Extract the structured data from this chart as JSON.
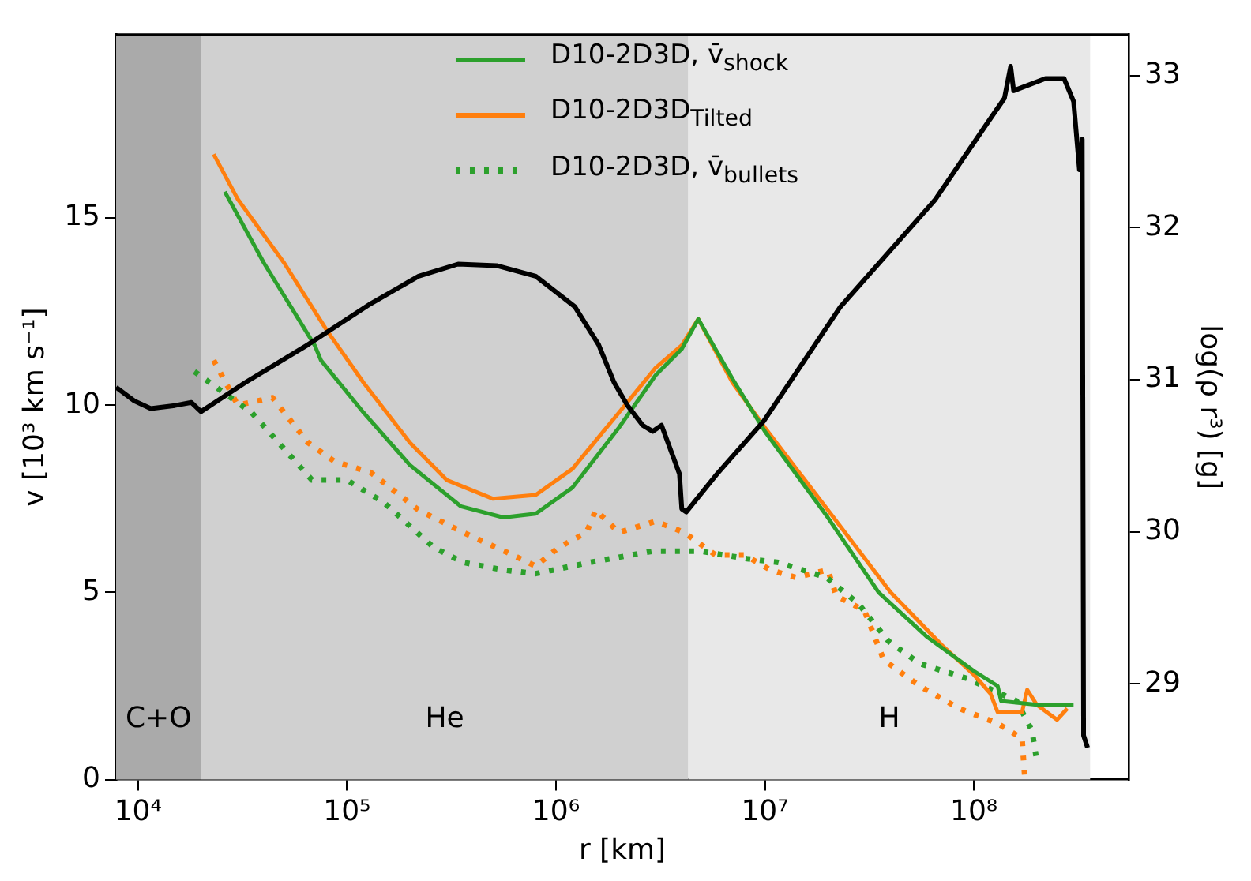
{
  "chart_data": {
    "type": "line",
    "xlabel": "r [km]",
    "ylabel": "v [10³ km s⁻¹]",
    "y2label": "log(ρ r³) [g]",
    "log": "x",
    "xlim": [
      7850,
      550000000.0
    ],
    "xticks": [
      {
        "value": 10000,
        "label": "10⁴"
      },
      {
        "value": 100000,
        "label": "10⁵"
      },
      {
        "value": 1000000,
        "label": "10⁶"
      },
      {
        "value": 10000000,
        "label": "10⁷"
      },
      {
        "value": 100000000,
        "label": "10⁸"
      }
    ],
    "ylim": [
      0,
      19.9
    ],
    "yticks": [
      0,
      5,
      10,
      15
    ],
    "y2lim": [
      28.37,
      33.27
    ],
    "y2ticks": [
      29,
      30,
      31,
      32,
      33
    ],
    "legend": "top",
    "grid": false,
    "bands": [
      {
        "axis": "x",
        "from": 7850,
        "to": 20000,
        "label": "C+O",
        "color": "#aaaaaa"
      },
      {
        "axis": "x",
        "from": 20000,
        "to": 4300000,
        "label": "He",
        "color": "#d0d0d0"
      },
      {
        "axis": "x",
        "from": 4300000,
        "to": 360000000,
        "label": "H",
        "color": "#e8e8e8"
      }
    ],
    "series": [
      {
        "name": "D10-2D3D, v̄$_{shock}$",
        "color": "#2ca02c",
        "line_style": "solid",
        "x": [
          26000,
          40000,
          70000,
          75000,
          120000,
          200000,
          350000,
          560000,
          800000,
          1200000,
          2000000,
          3000000,
          4000000,
          4800000,
          7000000,
          10000000,
          20000000,
          35000000,
          60000000,
          100000000,
          130000000,
          135000000,
          200000000,
          300000000
        ],
        "values": [
          15.7,
          13.8,
          11.6,
          11.2,
          9.8,
          8.4,
          7.3,
          7.0,
          7.1,
          7.8,
          9.4,
          10.8,
          11.5,
          12.3,
          10.7,
          9.3,
          7.0,
          5.0,
          3.8,
          2.9,
          2.5,
          2.1,
          2.0,
          2.0
        ]
      },
      {
        "name": "D10-2D3D$_{Tilted}$",
        "color": "#ff7f0e",
        "line_style": "solid",
        "x": [
          23000,
          30000,
          50000,
          80000,
          120000,
          200000,
          300000,
          500000,
          800000,
          1200000,
          2000000,
          3000000,
          4000000,
          4800000,
          7000000,
          10000000,
          20000000,
          40000000,
          70000000,
          100000000,
          120000000,
          130000000,
          170000000,
          180000000,
          200000000,
          250000000,
          280000000
        ],
        "values": [
          16.7,
          15.5,
          13.8,
          12.0,
          10.6,
          9.0,
          8.0,
          7.5,
          7.6,
          8.3,
          9.8,
          11.0,
          11.6,
          12.3,
          10.6,
          9.4,
          7.2,
          5.0,
          3.6,
          2.8,
          2.3,
          1.8,
          1.8,
          2.4,
          2.0,
          1.6,
          1.9
        ]
      },
      {
        "name": "D10-2D3D, v̄$_{bullets}$",
        "color": "#2ca02c",
        "line_style": "dotted",
        "x": [
          18600,
          35000,
          68000,
          100000,
          150000,
          260000,
          360000,
          560000,
          800000,
          1450000,
          2900000,
          4900000,
          8200000,
          11600000,
          19700000,
          28000000,
          39000000,
          55000000,
          93000000,
          160000000,
          190000000,
          200000000
        ],
        "values": [
          10.9,
          9.8,
          8.0,
          8.0,
          7.4,
          6.2,
          5.8,
          5.6,
          5.5,
          5.8,
          6.1,
          6.1,
          5.9,
          5.8,
          5.4,
          4.7,
          3.7,
          3.1,
          2.7,
          2.1,
          1.3,
          0.5
        ]
      },
      {
        "color": "#ff7f0e",
        "line_style": "dotted",
        "x": [
          23000,
          30000,
          44000,
          65000,
          87000,
          130000,
          220000,
          360000,
          620000,
          800000,
          1030000,
          1400000,
          1550000,
          2000000,
          3000000,
          4100000,
          5800000,
          8000000,
          10600000,
          14000000,
          20000000,
          22000000,
          26000000,
          30000000,
          37000000,
          55000000,
          85000000,
          130000000,
          170000000,
          175000000
        ],
        "values": [
          11.2,
          10.0,
          10.2,
          9.0,
          8.5,
          8.2,
          7.2,
          6.6,
          6.0,
          5.7,
          6.2,
          6.6,
          7.2,
          6.6,
          6.9,
          6.6,
          6.0,
          6.0,
          5.6,
          5.4,
          5.6,
          4.9,
          4.7,
          4.5,
          3.2,
          2.5,
          1.9,
          1.5,
          1.1,
          0.1
        ]
      },
      {
        "color": "#000000",
        "line_style": "solid",
        "axis": "y2",
        "x": [
          7850,
          9600,
          11500,
          15000,
          18000,
          20000,
          32500,
          65000,
          130000,
          220000,
          340000,
          520000,
          800000,
          1230000,
          1600000,
          1900000,
          2200000,
          2600000,
          2900000,
          3200000,
          3900000,
          4000000,
          4200000,
          5900000,
          9900000,
          23000000,
          65000000,
          115000000,
          140000000,
          150000000,
          155000000,
          220000000,
          270000000,
          300000000,
          320000000,
          330000000,
          335000000,
          350000000
        ],
        "values": [
          30.95,
          30.86,
          30.81,
          30.83,
          30.85,
          30.79,
          30.98,
          31.23,
          31.5,
          31.68,
          31.76,
          31.75,
          31.68,
          31.48,
          31.23,
          30.98,
          30.83,
          30.7,
          30.66,
          30.7,
          30.38,
          30.15,
          30.13,
          30.38,
          30.73,
          31.48,
          32.18,
          32.68,
          32.85,
          33.06,
          32.9,
          32.98,
          32.98,
          32.83,
          32.38,
          32.58,
          28.66,
          28.58
        ]
      }
    ]
  }
}
